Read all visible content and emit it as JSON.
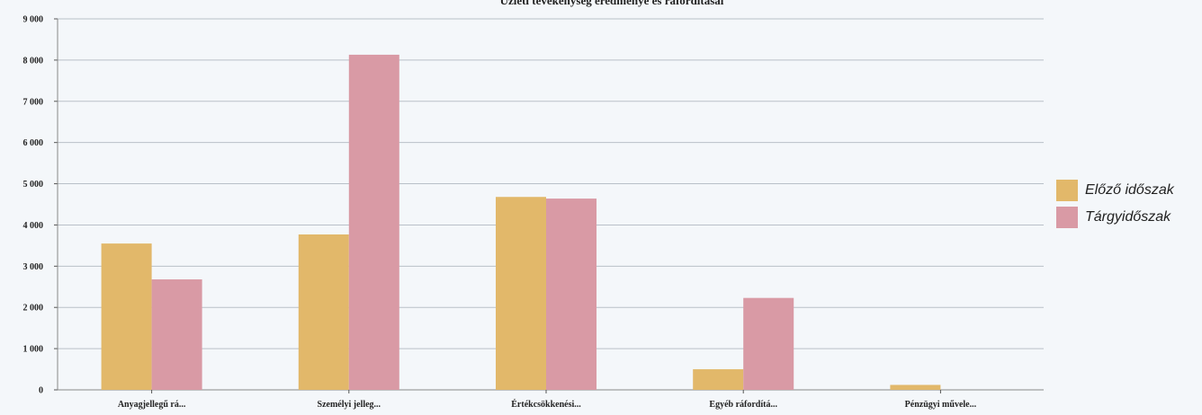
{
  "chart_data": {
    "type": "bar",
    "title": "Üzleti tevékenység eredménye és ráfordításai",
    "categories": [
      "Anyagjellegű rá...",
      "Személyi jelleg...",
      "Értékcsökkenési...",
      "Egyéb ráfordítá...",
      "Pénzügyi művele..."
    ],
    "series": [
      {
        "name": "Előző időszak",
        "color": "#e2b86a",
        "values": [
          3550,
          3770,
          4680,
          500,
          120
        ]
      },
      {
        "name": "Tárgyidőszak",
        "color": "#d99aa5",
        "values": [
          2680,
          8130,
          4640,
          2230,
          0
        ]
      }
    ],
    "ylim": [
      0,
      9000
    ],
    "yticks": [
      "0",
      "1 000",
      "2 000",
      "3 000",
      "4 000",
      "5 000",
      "6 000",
      "7 000",
      "8 000",
      "9 000"
    ],
    "grid": true,
    "legend_position": "right"
  }
}
